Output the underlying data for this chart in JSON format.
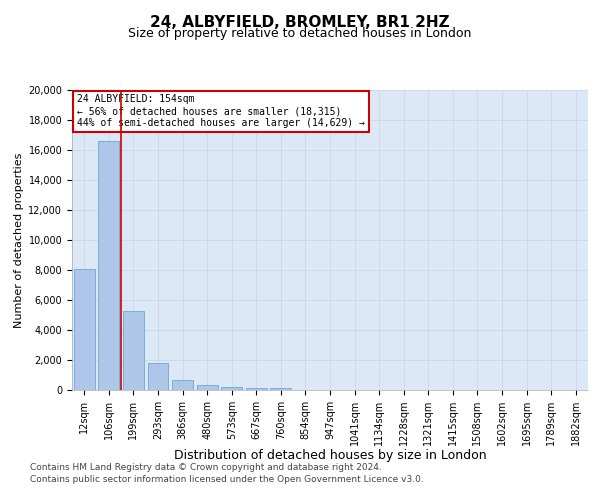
{
  "title1": "24, ALBYFIELD, BROMLEY, BR1 2HZ",
  "title2": "Size of property relative to detached houses in London",
  "xlabel": "Distribution of detached houses by size in London",
  "ylabel": "Number of detached properties",
  "categories": [
    "12sqm",
    "106sqm",
    "199sqm",
    "293sqm",
    "386sqm",
    "480sqm",
    "573sqm",
    "667sqm",
    "760sqm",
    "854sqm",
    "947sqm",
    "1041sqm",
    "1134sqm",
    "1228sqm",
    "1321sqm",
    "1415sqm",
    "1508sqm",
    "1602sqm",
    "1695sqm",
    "1789sqm",
    "1882sqm"
  ],
  "values": [
    8100,
    16600,
    5300,
    1800,
    650,
    330,
    180,
    130,
    120,
    0,
    0,
    0,
    0,
    0,
    0,
    0,
    0,
    0,
    0,
    0,
    0
  ],
  "bar_color": "#aec6e8",
  "bar_edge_color": "#5a9fd4",
  "vline_color": "#cc0000",
  "annotation_title": "24 ALBYFIELD: 154sqm",
  "annotation_line1": "← 56% of detached houses are smaller (18,315)",
  "annotation_line2": "44% of semi-detached houses are larger (14,629) →",
  "annotation_box_color": "#cc0000",
  "ylim": [
    0,
    20000
  ],
  "yticks": [
    0,
    2000,
    4000,
    6000,
    8000,
    10000,
    12000,
    14000,
    16000,
    18000,
    20000
  ],
  "grid_color": "#c8d8e8",
  "bg_color": "#dce8f5",
  "footer1": "Contains HM Land Registry data © Crown copyright and database right 2024.",
  "footer2": "Contains public sector information licensed under the Open Government Licence v3.0.",
  "title1_fontsize": 11,
  "title2_fontsize": 9,
  "xlabel_fontsize": 9,
  "ylabel_fontsize": 8,
  "tick_fontsize": 7,
  "footer_fontsize": 6.5,
  "annotation_fontsize": 7
}
